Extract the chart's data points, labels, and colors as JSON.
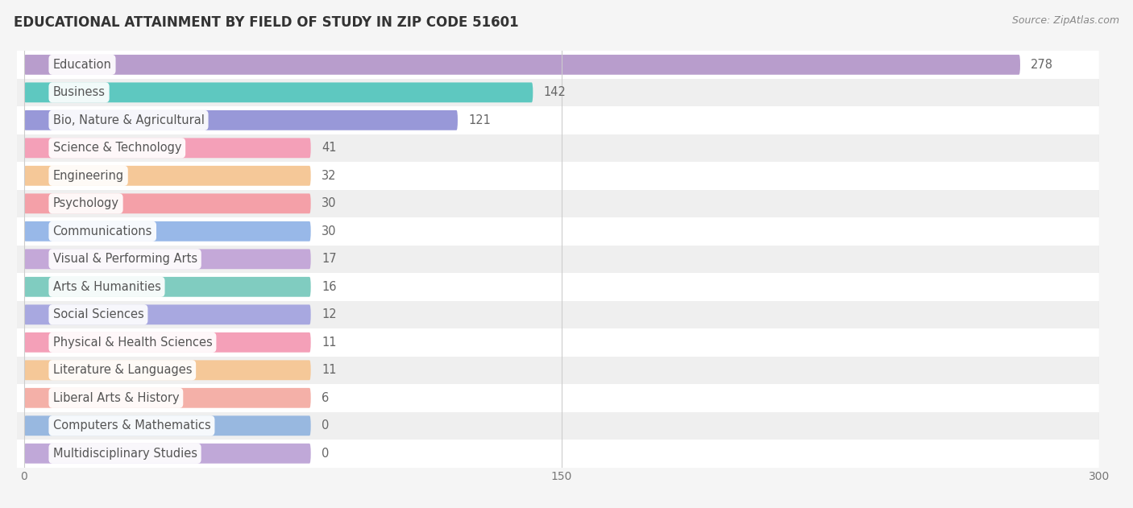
{
  "title": "EDUCATIONAL ATTAINMENT BY FIELD OF STUDY IN ZIP CODE 51601",
  "source": "Source: ZipAtlas.com",
  "categories": [
    "Education",
    "Business",
    "Bio, Nature & Agricultural",
    "Science & Technology",
    "Engineering",
    "Psychology",
    "Communications",
    "Visual & Performing Arts",
    "Arts & Humanities",
    "Social Sciences",
    "Physical & Health Sciences",
    "Literature & Languages",
    "Liberal Arts & History",
    "Computers & Mathematics",
    "Multidisciplinary Studies"
  ],
  "values": [
    278,
    142,
    121,
    41,
    32,
    30,
    30,
    17,
    16,
    12,
    11,
    11,
    6,
    0,
    0
  ],
  "colors": [
    "#b89dcc",
    "#5ec8c0",
    "#9898d8",
    "#f4a0b8",
    "#f5c898",
    "#f4a0a8",
    "#98b8e8",
    "#c4a8d8",
    "#80ccc0",
    "#a8a8e0",
    "#f4a0b8",
    "#f5c898",
    "#f4b0a8",
    "#98b8e0",
    "#c0a8d8"
  ],
  "xlim": [
    -2,
    300
  ],
  "xticks": [
    0,
    150,
    300
  ],
  "bar_height": 0.72,
  "background_color": "#f5f5f5",
  "row_bg_colors": [
    "#ffffff",
    "#efefef"
  ],
  "title_fontsize": 12,
  "label_fontsize": 10.5,
  "value_fontsize": 10.5,
  "min_bar_width": 80
}
